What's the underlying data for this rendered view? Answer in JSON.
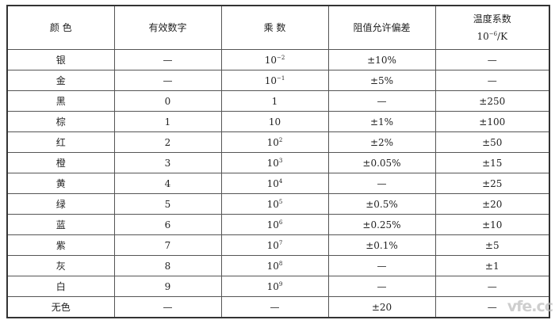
{
  "header": {
    "color": "颜 色",
    "digit": "有效数字",
    "multiplier": "乘 数",
    "tolerance": "阻值允许偏差",
    "tempcoef": "温度系数",
    "tempcoef_unit_base": "10",
    "tempcoef_unit_exp": "−6",
    "tempcoef_unit_suffix": "/K"
  },
  "rows": [
    {
      "color": "银",
      "digit": "—",
      "mult_base": "10",
      "mult_exp": "−2",
      "tolerance": "±10%",
      "tempcoef": "—"
    },
    {
      "color": "金",
      "digit": "—",
      "mult_base": "10",
      "mult_exp": "−1",
      "tolerance": "±5%",
      "tempcoef": "—"
    },
    {
      "color": "黑",
      "digit": "0",
      "mult_base": "1",
      "mult_exp": "",
      "tolerance": "—",
      "tempcoef": "±250"
    },
    {
      "color": "棕",
      "digit": "1",
      "mult_base": "10",
      "mult_exp": "",
      "tolerance": "±1%",
      "tempcoef": "±100"
    },
    {
      "color": "红",
      "digit": "2",
      "mult_base": "10",
      "mult_exp": "2",
      "tolerance": "±2%",
      "tempcoef": "±50"
    },
    {
      "color": "橙",
      "digit": "3",
      "mult_base": "10",
      "mult_exp": "3",
      "tolerance": "±0.05%",
      "tempcoef": "±15"
    },
    {
      "color": "黄",
      "digit": "4",
      "mult_base": "10",
      "mult_exp": "4",
      "tolerance": "—",
      "tempcoef": "±25"
    },
    {
      "color": "绿",
      "digit": "5",
      "mult_base": "10",
      "mult_exp": "5",
      "tolerance": "±0.5%",
      "tempcoef": "±20"
    },
    {
      "color": "蓝",
      "digit": "6",
      "mult_base": "10",
      "mult_exp": "6",
      "tolerance": "±0.25%",
      "tempcoef": "±10"
    },
    {
      "color": "紫",
      "digit": "7",
      "mult_base": "10",
      "mult_exp": "7",
      "tolerance": "±0.1%",
      "tempcoef": "±5"
    },
    {
      "color": "灰",
      "digit": "8",
      "mult_base": "10",
      "mult_exp": "8",
      "tolerance": "—",
      "tempcoef": "±1"
    },
    {
      "color": "白",
      "digit": "9",
      "mult_base": "10",
      "mult_exp": "9",
      "tolerance": "—",
      "tempcoef": "—"
    },
    {
      "color": "无色",
      "digit": "—",
      "mult_base": "—",
      "mult_exp": "",
      "tolerance": "±20",
      "tempcoef": "—"
    }
  ],
  "watermark": "vfe.cc"
}
